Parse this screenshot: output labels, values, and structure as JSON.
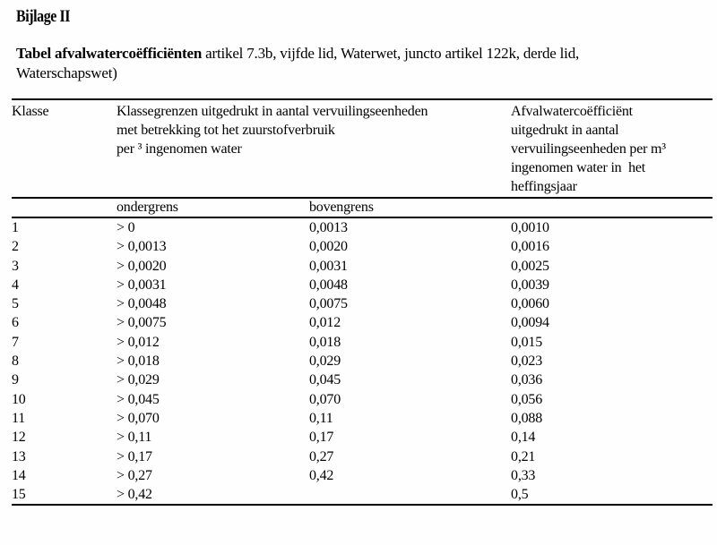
{
  "page": {
    "heading": "Bijlage II",
    "title_bold": "Tabel afvalwatercoëfficiënten",
    "title_rest": " artikel 7.3b, vijfde lid, Waterwet, juncto artikel 122k, derde lid,",
    "title_line2": "Waterschapswet)"
  },
  "table": {
    "header": {
      "col1": "Klasse",
      "col23_lines": [
        "Klassegrenzen uitgedrukt in aantal vervuilingseenheden",
        "met betrekking tot het zuurstofverbruik",
        "per ³ ingenomen water"
      ],
      "col4_lines": [
        "Afvalwatercoëfficiënt",
        "uitgedrukt in aantal",
        "vervuilingseenheden per m³",
        "ingenomen water in  het",
        "heffingsjaar"
      ],
      "sub_col2": "ondergrens",
      "sub_col3": "bovengrens"
    },
    "rows": [
      {
        "klasse": "1",
        "ondergrens": "> 0",
        "bovengrens": "0,0013",
        "coefficient": "0,0010"
      },
      {
        "klasse": "2",
        "ondergrens": "> 0,0013",
        "bovengrens": "0,0020",
        "coefficient": "0,0016"
      },
      {
        "klasse": "3",
        "ondergrens": "> 0,0020",
        "bovengrens": "0,0031",
        "coefficient": "0,0025"
      },
      {
        "klasse": "4",
        "ondergrens": "> 0,0031",
        "bovengrens": "0,0048",
        "coefficient": "0,0039"
      },
      {
        "klasse": "5",
        "ondergrens": "> 0,0048",
        "bovengrens": "0,0075",
        "coefficient": "0,0060"
      },
      {
        "klasse": "6",
        "ondergrens": "> 0,0075",
        "bovengrens": "0,012",
        "coefficient": "0,0094"
      },
      {
        "klasse": "7",
        "ondergrens": "> 0,012",
        "bovengrens": "0,018",
        "coefficient": "0,015"
      },
      {
        "klasse": "8",
        "ondergrens": "> 0,018",
        "bovengrens": "0,029",
        "coefficient": "0,023"
      },
      {
        "klasse": "9",
        "ondergrens": "> 0,029",
        "bovengrens": "0,045",
        "coefficient": "0,036"
      },
      {
        "klasse": "10",
        "ondergrens": "> 0,045",
        "bovengrens": "0,070",
        "coefficient": "0,056"
      },
      {
        "klasse": "11",
        "ondergrens": "> 0,070",
        "bovengrens": "0,11",
        "coefficient": "0,088"
      },
      {
        "klasse": "12",
        "ondergrens": "> 0,11",
        "bovengrens": "0,17",
        "coefficient": "0,14"
      },
      {
        "klasse": "13",
        "ondergrens": "> 0,17",
        "bovengrens": "0,27",
        "coefficient": "0,21"
      },
      {
        "klasse": "14",
        "ondergrens": "> 0,27",
        "bovengrens": "0,42",
        "coefficient": "0,33"
      },
      {
        "klasse": "15",
        "ondergrens": "> 0,42",
        "bovengrens": "",
        "coefficient": "0,5"
      }
    ]
  }
}
